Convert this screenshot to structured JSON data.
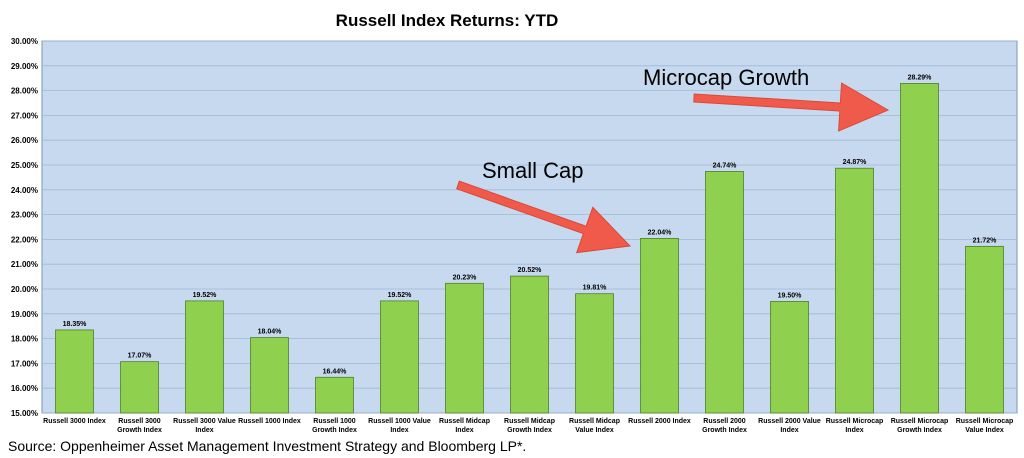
{
  "source_note": "Source: Oppenheimer Asset Management Investment Strategy and Bloomberg LP*.",
  "colors": {
    "plot_bg": "#c6d9ef",
    "bar_fill": "#8fd14f",
    "bar_stroke": "#4e7f2a",
    "grid": "#9fb7d6",
    "arrow": "#f05a4a"
  },
  "chart_data": {
    "type": "bar",
    "title": "Russell Index Returns: YTD",
    "xlabel": "",
    "ylabel": "",
    "ylim": [
      15,
      30
    ],
    "ytick_step": 1,
    "ytick_labels": [
      "15.00%",
      "16.00%",
      "17.00%",
      "18.00%",
      "19.00%",
      "20.00%",
      "21.00%",
      "22.00%",
      "23.00%",
      "24.00%",
      "25.00%",
      "26.00%",
      "27.00%",
      "28.00%",
      "29.00%",
      "30.00%"
    ],
    "grid": true,
    "categories": [
      [
        "Russell 3000 Index"
      ],
      [
        "Russell 3000",
        "Growth Index"
      ],
      [
        "Russell 3000 Value",
        "Index"
      ],
      [
        "Russell 1000 Index"
      ],
      [
        "Russell 1000",
        "Growth Index"
      ],
      [
        "Russell 1000 Value",
        "Index"
      ],
      [
        "Russell Midcap",
        "Index"
      ],
      [
        "Russell Midcap",
        "Growth Index"
      ],
      [
        "Russell Midcap",
        "Value Index"
      ],
      [
        "Russell 2000 Index"
      ],
      [
        "Russell 2000",
        "Growth Index"
      ],
      [
        "Russell 2000 Value",
        "Index"
      ],
      [
        "Russell Microcap",
        "Index"
      ],
      [
        "Russell Microcap",
        "Growth Index"
      ],
      [
        "Russell Microcap",
        "Value Index"
      ]
    ],
    "values": [
      18.35,
      17.07,
      19.52,
      18.04,
      16.44,
      19.52,
      20.23,
      20.52,
      19.81,
      22.04,
      24.74,
      19.5,
      24.87,
      28.29,
      21.72
    ],
    "data_labels": [
      "18.35%",
      "17.07%",
      "19.52%",
      "18.04%",
      "16.44%",
      "19.52%",
      "20.23%",
      "20.52%",
      "19.81%",
      "22.04%",
      "24.74%",
      "19.50%",
      "24.87%",
      "28.29%",
      "21.72%"
    ],
    "annotations": [
      {
        "text": "Small Cap",
        "target_index": 9
      },
      {
        "text": "Microcap Growth",
        "target_index": 13
      }
    ]
  }
}
